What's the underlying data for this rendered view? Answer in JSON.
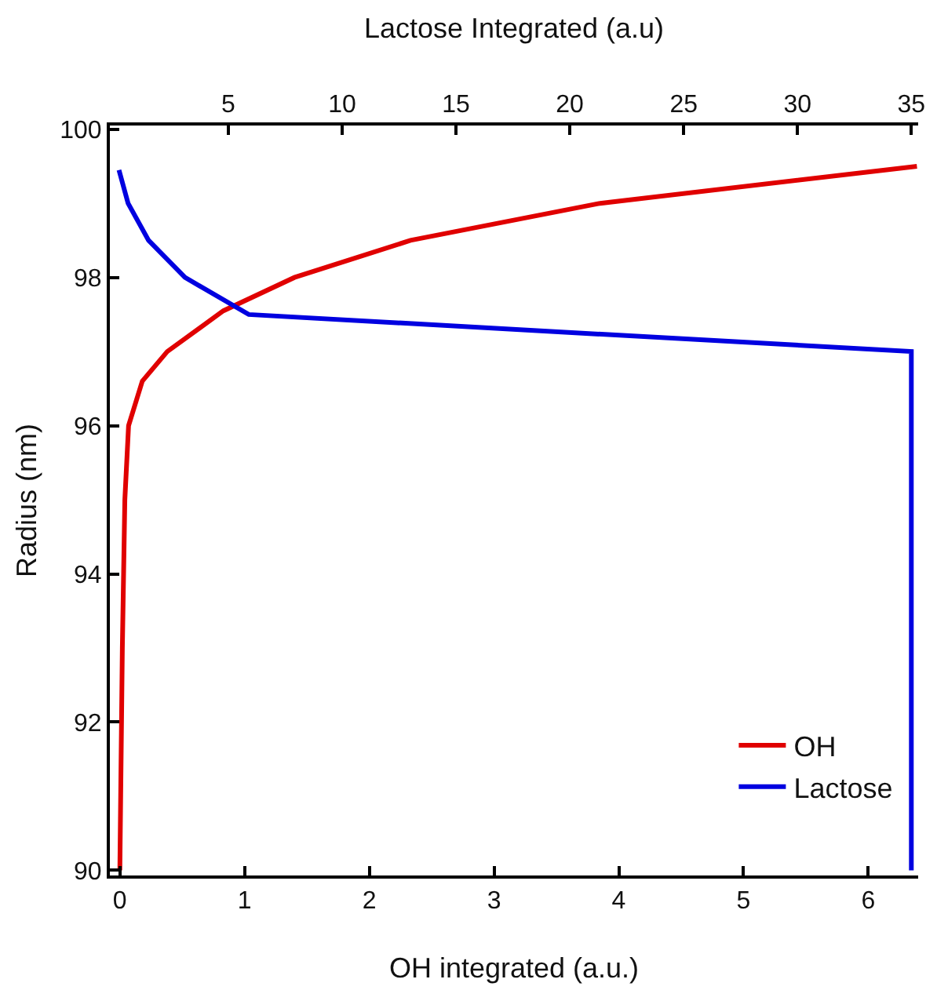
{
  "chart_data": {
    "type": "line",
    "xlabel": "OH integrated (a.u.)",
    "x2label": "Lactose Integrated (a.u)",
    "ylabel": "Radius (nm)",
    "xlim": [
      -0.08,
      6.4
    ],
    "xticks": [
      0,
      1,
      2,
      3,
      4,
      5,
      6
    ],
    "x2lim": [
      -0.2,
      35.3
    ],
    "x2ticks": [
      5,
      10,
      15,
      20,
      25,
      30,
      35
    ],
    "ylim": [
      89.93,
      100.05
    ],
    "yticks": [
      90,
      92,
      94,
      96,
      98,
      100
    ],
    "grid": false,
    "legend": "bottom right",
    "marker": "none",
    "line_style": "solid",
    "series": [
      {
        "name": "OH",
        "color": "#e00000",
        "x": [
          0,
          0.02,
          0.04,
          0.07,
          0.18,
          0.38,
          0.83,
          1.4,
          2.33,
          3.85,
          6.39
        ],
        "values": [
          90,
          93,
          95,
          96,
          96.6,
          97,
          97.55,
          98,
          98.5,
          99,
          99.5
        ]
      },
      {
        "name": "Lactose",
        "color": "#0000e0",
        "axis": "x2",
        "x": [
          0.2,
          0.6,
          1.5,
          3.1,
          5.9,
          35,
          35
        ],
        "values": [
          99.45,
          99,
          98.5,
          98,
          97.5,
          97,
          90
        ]
      }
    ]
  }
}
